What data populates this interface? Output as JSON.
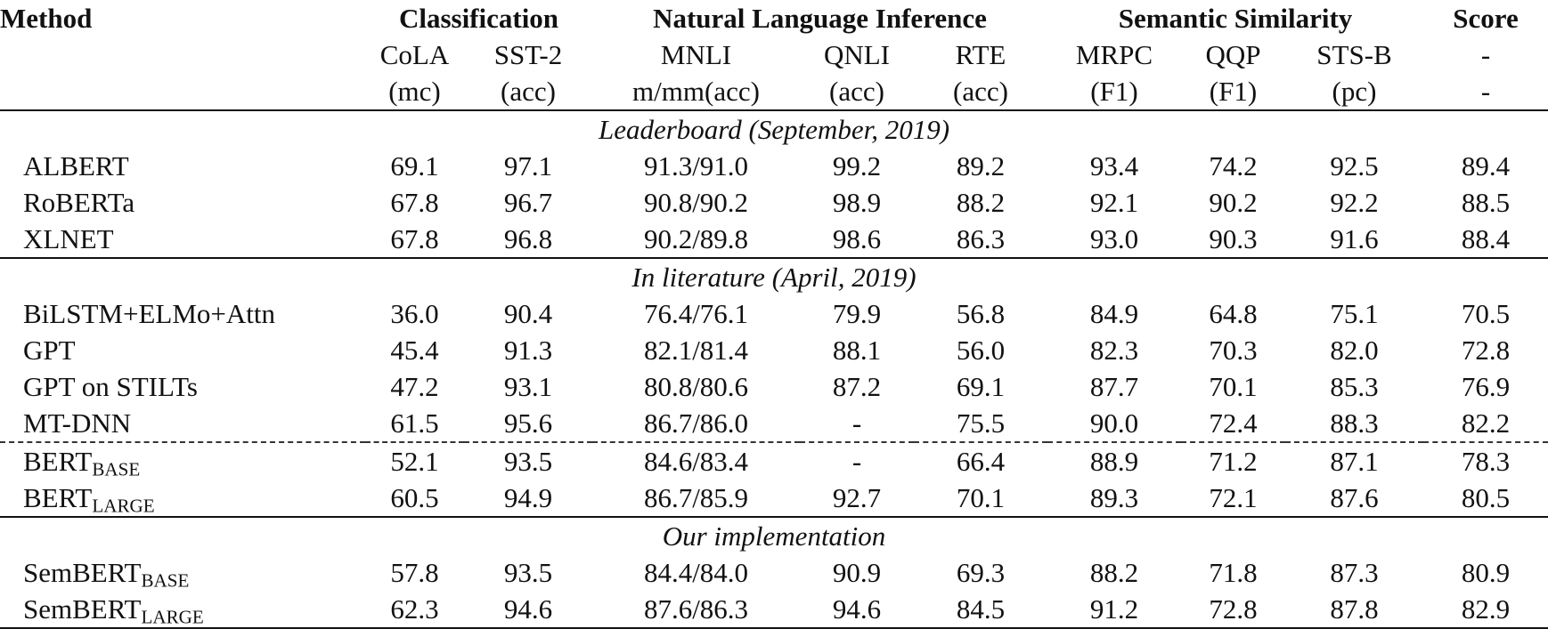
{
  "table": {
    "header": {
      "method": "Method",
      "groups": [
        {
          "label": "Classification",
          "columns": [
            {
              "name": "CoLA",
              "metric": "(mc)"
            },
            {
              "name": "SST-2",
              "metric": "(acc)"
            }
          ]
        },
        {
          "label": "Natural Language Inference",
          "columns": [
            {
              "name": "MNLI",
              "metric": "m/mm(acc)"
            },
            {
              "name": "QNLI",
              "metric": "(acc)"
            },
            {
              "name": "RTE",
              "metric": "(acc)"
            }
          ]
        },
        {
          "label": "Semantic Similarity",
          "columns": [
            {
              "name": "MRPC",
              "metric": "(F1)"
            },
            {
              "name": "QQP",
              "metric": "(F1)"
            },
            {
              "name": "STS-B",
              "metric": "(pc)"
            }
          ]
        },
        {
          "label": "Score",
          "columns": [
            {
              "name": "-",
              "metric": "-"
            }
          ]
        }
      ]
    },
    "sections": [
      {
        "title": "Leaderboard (September, 2019)",
        "row_groups": [
          [
            {
              "method": {
                "name": "ALBERT"
              },
              "scores": [
                "69.1",
                "97.1",
                "91.3/91.0",
                "99.2",
                "89.2",
                "93.4",
                "74.2",
                "92.5",
                "89.4"
              ]
            },
            {
              "method": {
                "name": "RoBERTa"
              },
              "scores": [
                "67.8",
                "96.7",
                "90.8/90.2",
                "98.9",
                "88.2",
                "92.1",
                "90.2",
                "92.2",
                "88.5"
              ]
            },
            {
              "method": {
                "name": "XLNET"
              },
              "scores": [
                "67.8",
                "96.8",
                "90.2/89.8",
                "98.6",
                "86.3",
                "93.0",
                "90.3",
                "91.6",
                "88.4"
              ]
            }
          ]
        ]
      },
      {
        "title": "In literature (April, 2019)",
        "row_groups": [
          [
            {
              "method": {
                "name": "BiLSTM+ELMo+Attn"
              },
              "scores": [
                "36.0",
                "90.4",
                "76.4/76.1",
                "79.9",
                "56.8",
                "84.9",
                "64.8",
                "75.1",
                "70.5"
              ]
            },
            {
              "method": {
                "name": "GPT"
              },
              "scores": [
                "45.4",
                "91.3",
                "82.1/81.4",
                "88.1",
                "56.0",
                "82.3",
                "70.3",
                "82.0",
                "72.8"
              ]
            },
            {
              "method": {
                "name": "GPT on STILTs"
              },
              "scores": [
                "47.2",
                "93.1",
                "80.8/80.6",
                "87.2",
                "69.1",
                "87.7",
                "70.1",
                "85.3",
                "76.9"
              ]
            },
            {
              "method": {
                "name": "MT-DNN"
              },
              "scores": [
                "61.5",
                "95.6",
                "86.7/86.0",
                "-",
                "75.5",
                "90.0",
                "72.4",
                "88.3",
                "82.2"
              ]
            }
          ],
          [
            {
              "method": {
                "name": "BERT",
                "sub": "BASE"
              },
              "scores": [
                "52.1",
                "93.5",
                "84.6/83.4",
                "-",
                "66.4",
                "88.9",
                "71.2",
                "87.1",
                "78.3"
              ]
            },
            {
              "method": {
                "name": "BERT",
                "sub": "LARGE"
              },
              "scores": [
                "60.5",
                "94.9",
                "86.7/85.9",
                "92.7",
                "70.1",
                "89.3",
                "72.1",
                "87.6",
                "80.5"
              ]
            }
          ]
        ]
      },
      {
        "title": "Our implementation",
        "row_groups": [
          [
            {
              "method": {
                "name": "SemBERT",
                "sub": "BASE"
              },
              "scores": [
                "57.8",
                "93.5",
                "84.4/84.0",
                "90.9",
                "69.3",
                "88.2",
                "71.8",
                "87.3",
                "80.9"
              ]
            },
            {
              "method": {
                "name": "SemBERT",
                "sub": "LARGE"
              },
              "scores": [
                "62.3",
                "94.6",
                "87.6/86.3",
                "94.6",
                "84.5",
                "91.2",
                "72.8",
                "87.8",
                "82.9"
              ]
            }
          ]
        ]
      }
    ]
  }
}
